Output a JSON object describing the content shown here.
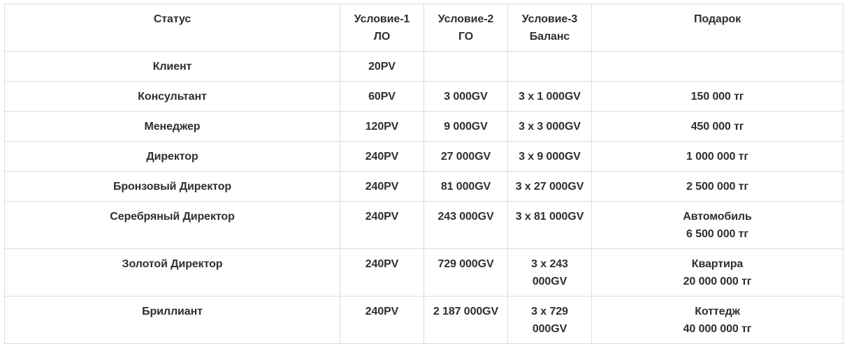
{
  "table": {
    "headers": [
      {
        "line1": "Статус",
        "line2": ""
      },
      {
        "line1": "Условие-1",
        "line2": "ЛО"
      },
      {
        "line1": "Условие-2",
        "line2": "ГО"
      },
      {
        "line1": "Условие-3",
        "line2": "Баланс"
      },
      {
        "line1": "Подарок",
        "line2": ""
      }
    ],
    "rows": [
      {
        "status": "Клиент",
        "c1": "20PV",
        "c2": "",
        "c3a": "",
        "c3b": "",
        "gift_a": "",
        "gift_b": ""
      },
      {
        "status": "Консультант",
        "c1": "60PV",
        "c2": "3 000GV",
        "c3a": "3 x 1 000GV",
        "c3b": "",
        "gift_a": "150 000 тг",
        "gift_b": ""
      },
      {
        "status": "Менеджер",
        "c1": "120PV",
        "c2": "9 000GV",
        "c3a": "3 x 3 000GV",
        "c3b": "",
        "gift_a": "450 000 тг",
        "gift_b": ""
      },
      {
        "status": "Директор",
        "c1": "240PV",
        "c2": "27 000GV",
        "c3a": "3 x 9 000GV",
        "c3b": "",
        "gift_a": "1 000 000 тг",
        "gift_b": ""
      },
      {
        "status": "Бронзовый Директор",
        "c1": "240PV",
        "c2": "81 000GV",
        "c3a": "3 x 27 000GV",
        "c3b": "",
        "gift_a": "2 500 000 тг",
        "gift_b": ""
      },
      {
        "status": "Серебряный Директор",
        "c1": "240PV",
        "c2": "243 000GV",
        "c3a": "3 x 81 000GV",
        "c3b": "",
        "gift_a": "Автомобиль",
        "gift_b": "6 500 000 тг"
      },
      {
        "status": "Золотой Директор",
        "c1": "240PV",
        "c2": "729 000GV",
        "c3a": "3 x 243",
        "c3b": "000GV",
        "gift_a": "Квартира",
        "gift_b": "20 000 000 тг"
      },
      {
        "status": "Бриллиант",
        "c1": "240PV",
        "c2": "2 187 000GV",
        "c3a": "3 x 729",
        "c3b": "000GV",
        "gift_a": "Коттедж",
        "gift_b": "40 000 000 тг"
      }
    ]
  }
}
